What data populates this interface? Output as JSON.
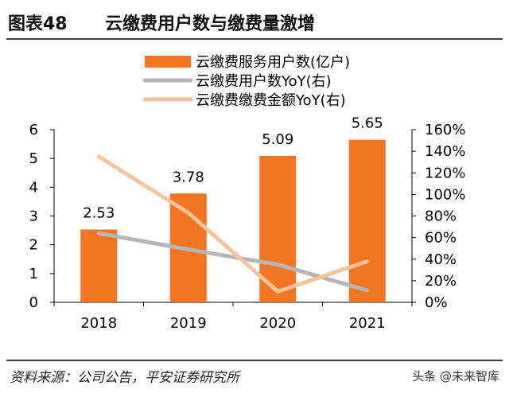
{
  "header": {
    "figure_number": "图表48",
    "title": "云缴费用户数与缴费量激增"
  },
  "footer": {
    "source": "资料来源：公司公告，平安证券研究所",
    "watermark": "头条 @未来智库"
  },
  "colors": {
    "bar": "#f47521",
    "user_yoy_line": "#b5b5b5",
    "amount_yoy_line": "#f8c39b",
    "axis": "#000000",
    "rule": "#3a3a3a"
  },
  "chart_data": {
    "type": "bar",
    "categories": [
      "2018",
      "2019",
      "2020",
      "2021"
    ],
    "series": [
      {
        "name": "云缴费服务用户数(亿户)",
        "kind": "bar",
        "axis": "left",
        "values": [
          2.53,
          3.78,
          5.09,
          5.65
        ],
        "data_labels": [
          "2.53",
          "3.78",
          "5.09",
          "5.65"
        ]
      },
      {
        "name": "云缴费用户数YoY(右)",
        "kind": "line",
        "axis": "right",
        "values": [
          0.64,
          0.49,
          0.35,
          0.11
        ]
      },
      {
        "name": "云缴费缴费金额YoY(右)",
        "kind": "line",
        "axis": "right",
        "values": [
          1.35,
          0.83,
          0.1,
          0.38
        ]
      }
    ],
    "y_left": {
      "ylim": [
        0,
        6
      ],
      "ticks": [
        0,
        1,
        2,
        3,
        4,
        5,
        6
      ],
      "tick_labels": [
        "0",
        "1",
        "2",
        "3",
        "4",
        "5",
        "6"
      ]
    },
    "y_right": {
      "ylim": [
        0,
        1.6
      ],
      "ticks": [
        0,
        0.2,
        0.4,
        0.6,
        0.8,
        1.0,
        1.2,
        1.4,
        1.6
      ],
      "tick_labels": [
        "0%",
        "20%",
        "40%",
        "60%",
        "80%",
        "100%",
        "120%",
        "140%",
        "160%"
      ]
    },
    "grid": false,
    "legend_position": "top-center"
  }
}
